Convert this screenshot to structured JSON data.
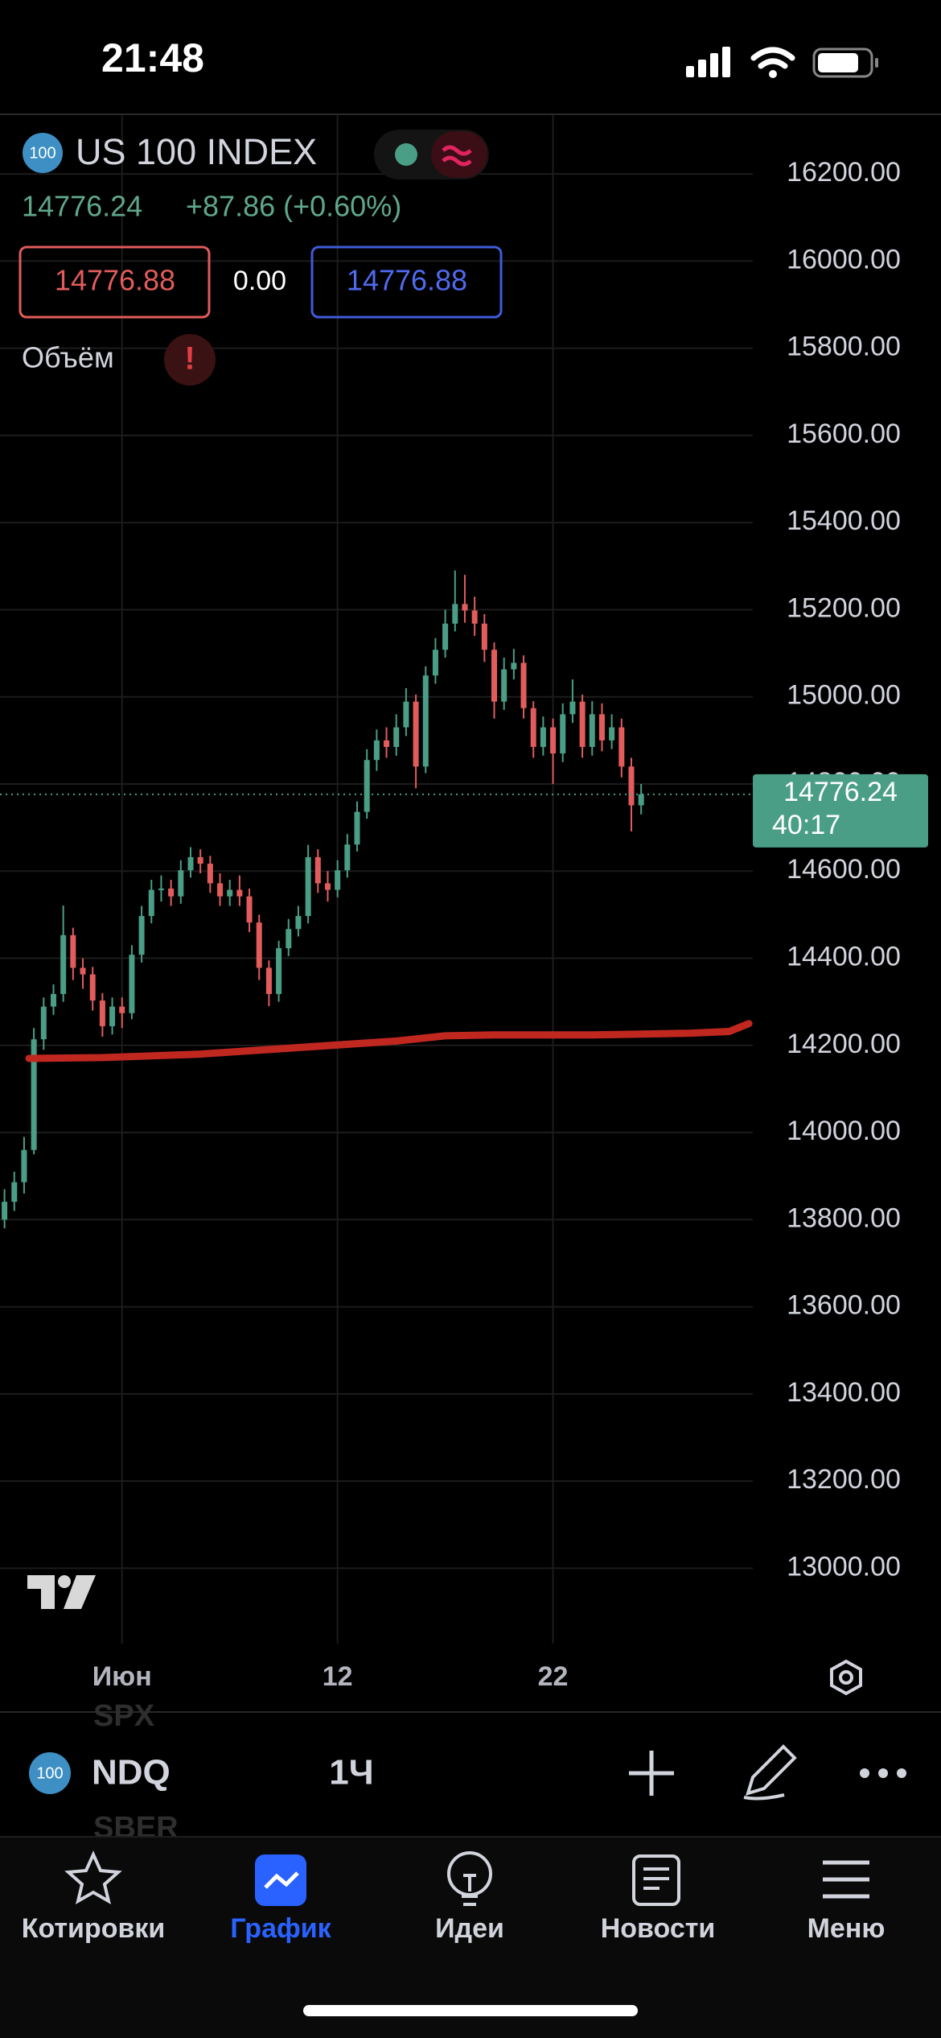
{
  "status_bar": {
    "time": "21:48"
  },
  "header": {
    "icon": "100",
    "symbol": "US 100 INDEX",
    "price": "14776.24",
    "change": "+87.86 (+0.60%)",
    "sell": "14776.88",
    "spread": "0.00",
    "buy": "14776.88",
    "volume_label": "Объём",
    "alert": "!"
  },
  "chart_data": {
    "type": "candlestick",
    "open": [
      13800,
      13841,
      13886,
      13960,
      14214,
      14289,
      14318,
      14453,
      14378,
      14363,
      14303,
      14244,
      14289,
      14274,
      14408,
      14497,
      14557,
      14560,
      14542,
      14602,
      14632,
      14617,
      14572,
      14542,
      14557,
      14542,
      14482,
      14378,
      14318,
      14423,
      14467,
      14497,
      14632,
      14572,
      14557,
      14602,
      14661,
      14736,
      14855,
      14900,
      14885,
      14930,
      14989,
      14840,
      15049,
      15108,
      15168,
      15213,
      15198,
      15168,
      15108,
      14989,
      15063,
      15078,
      14974,
      14885,
      14930,
      14870,
      14960,
      14989,
      14885,
      14960,
      14900,
      14930,
      14840,
      14751
    ],
    "high": [
      13870,
      13910,
      13990,
      14240,
      14310,
      14340,
      14521,
      14470,
      14400,
      14380,
      14320,
      14310,
      14310,
      14430,
      14520,
      14580,
      14590,
      14580,
      14625,
      14655,
      14650,
      14635,
      14595,
      14580,
      14590,
      14560,
      14500,
      14395,
      14440,
      14490,
      14520,
      14660,
      14650,
      14600,
      14625,
      14685,
      14760,
      14880,
      14925,
      14930,
      14960,
      15020,
      15005,
      15070,
      15135,
      15200,
      15290,
      15280,
      15230,
      15190,
      15125,
      15090,
      15110,
      15095,
      14990,
      14955,
      14950,
      14985,
      15040,
      15005,
      14990,
      14985,
      14960,
      14950,
      14860,
      14800
    ],
    "low": [
      13780,
      13820,
      13860,
      13950,
      14190,
      14270,
      14300,
      14350,
      14330,
      14280,
      14220,
      14225,
      14240,
      14260,
      14390,
      14480,
      14530,
      14520,
      14525,
      14585,
      14595,
      14550,
      14520,
      14520,
      14520,
      14460,
      14350,
      14290,
      14300,
      14405,
      14450,
      14480,
      14550,
      14530,
      14540,
      14585,
      14645,
      14720,
      14830,
      14860,
      14865,
      14910,
      14790,
      14825,
      15030,
      15090,
      15150,
      15170,
      15140,
      15080,
      14950,
      14970,
      15040,
      14950,
      14860,
      14865,
      14800,
      14850,
      14940,
      14860,
      14865,
      14875,
      14880,
      14815,
      14691,
      14730
    ],
    "close": [
      13841,
      13886,
      13960,
      14214,
      14289,
      14318,
      14453,
      14378,
      14363,
      14303,
      14244,
      14289,
      14274,
      14408,
      14497,
      14557,
      14560,
      14542,
      14602,
      14632,
      14617,
      14572,
      14542,
      14557,
      14542,
      14482,
      14378,
      14318,
      14423,
      14467,
      14497,
      14632,
      14572,
      14557,
      14602,
      14661,
      14736,
      14855,
      14900,
      14885,
      14930,
      14989,
      14840,
      15049,
      15108,
      15168,
      15213,
      15198,
      15168,
      15108,
      14989,
      15063,
      15078,
      14974,
      14885,
      14930,
      14870,
      14960,
      14989,
      14885,
      14960,
      14900,
      14930,
      14840,
      14751,
      14776.24
    ],
    "up_color": "#4a9e85",
    "down_color": "#e25c5c",
    "ma": {
      "color": "#c0281f",
      "x": [
        2.5,
        10,
        20,
        30,
        40,
        45,
        50,
        60,
        70,
        74,
        76
      ],
      "values": [
        14170,
        14172,
        14180,
        14195,
        14210,
        14222,
        14224,
        14224,
        14228,
        14232,
        14250
      ]
    },
    "ylim": [
      12827,
      16337
    ],
    "yticks": [
      {
        "value": 13000,
        "label": "13000.00"
      },
      {
        "value": 13200,
        "label": "13200.00"
      },
      {
        "value": 13400,
        "label": "13400.00"
      },
      {
        "value": 13600,
        "label": "13600.00"
      },
      {
        "value": 13800,
        "label": "13800.00"
      },
      {
        "value": 14000,
        "label": "14000.00"
      },
      {
        "value": 14200,
        "label": "14200.00"
      },
      {
        "value": 14400,
        "label": "14400.00"
      },
      {
        "value": 14600,
        "label": "14600.00"
      },
      {
        "value": 14800,
        "label": "14800.00"
      },
      {
        "value": 15000,
        "label": "15000.00"
      },
      {
        "value": 15200,
        "label": "15200.00"
      },
      {
        "value": 15400,
        "label": "15400.00"
      },
      {
        "value": 15600,
        "label": "15600.00"
      },
      {
        "value": 15800,
        "label": "15800.00"
      },
      {
        "value": 16000,
        "label": "16000.00"
      },
      {
        "value": 16200,
        "label": "16200.00"
      }
    ],
    "xlim": [
      -0.46,
      76.4
    ],
    "xticks": [
      {
        "value": 12,
        "label": "Июн"
      },
      {
        "value": 34,
        "label": "12"
      },
      {
        "value": 56,
        "label": "22"
      }
    ],
    "grid": true,
    "last_price_countdown": "40:17"
  },
  "toolbar": {
    "icon": "100",
    "symbol": "NDQ",
    "interval": "1Ч",
    "list_above": "SPX",
    "list_below": "SBER"
  },
  "tabs": [
    {
      "label": "Котировки"
    },
    {
      "label": "График"
    },
    {
      "label": "Идеи"
    },
    {
      "label": "Новости"
    },
    {
      "label": "Меню"
    }
  ]
}
